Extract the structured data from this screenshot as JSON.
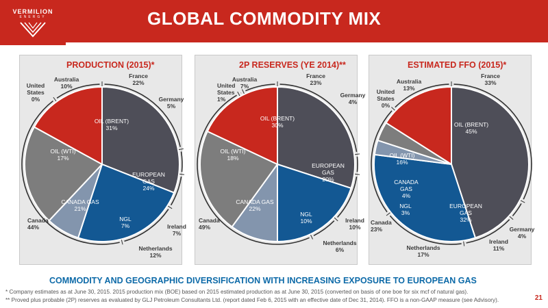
{
  "header": {
    "company_name": "VERMILION",
    "company_sub": "ENERGY",
    "title": "GLOBAL COMMODITY MIX",
    "brand_color": "#c8281e"
  },
  "colors": {
    "oil_brent": "#4e4e58",
    "oil_wti": "#c8281e",
    "canada_gas": "#7d7d7d",
    "ngl": "#8395ad",
    "european_gas": "#135893",
    "separator": "#ffffff",
    "outer_line": "#303030"
  },
  "chart_data": [
    {
      "type": "pie",
      "title": "PRODUCTION (2015)*",
      "slices": [
        {
          "label_lines": [
            "OIL (BRENT)",
            "31%"
          ],
          "value": 31,
          "color": "oil_brent"
        },
        {
          "label_lines": [
            "EUROPEAN",
            "GAS",
            "24%"
          ],
          "value": 24,
          "color": "european_gas"
        },
        {
          "label_lines": [
            "NGL",
            "7%"
          ],
          "value": 7,
          "color": "ngl"
        },
        {
          "label_lines": [
            "CANADA GAS",
            "21%"
          ],
          "value": 21,
          "color": "canada_gas"
        },
        {
          "label_lines": [
            "OIL (WTI)",
            "17%"
          ],
          "value": 17,
          "color": "oil_wti"
        }
      ],
      "outer_labels": [
        {
          "lines": [
            "France",
            "22%"
          ],
          "value": 22
        },
        {
          "lines": [
            "Germany",
            "5%"
          ],
          "value": 5
        },
        {
          "lines": [
            "Ireland",
            "7%"
          ],
          "value": 7
        },
        {
          "lines": [
            "Netherlands",
            "12%"
          ],
          "value": 12
        },
        {
          "lines": [
            "Canada",
            "44%"
          ],
          "value": 44
        },
        {
          "lines": [
            "United",
            "States",
            "0%"
          ],
          "value": 0
        },
        {
          "lines": [
            "Australia",
            "10%"
          ],
          "value": 10
        }
      ]
    },
    {
      "type": "pie",
      "title": "2P RESERVES (YE 2014)**",
      "slices": [
        {
          "label_lines": [
            "OIL (BRENT)",
            "30%"
          ],
          "value": 30,
          "color": "oil_brent"
        },
        {
          "label_lines": [
            "EUROPEAN",
            "GAS",
            "20%"
          ],
          "value": 20,
          "color": "european_gas"
        },
        {
          "label_lines": [
            "NGL",
            "10%"
          ],
          "value": 10,
          "color": "ngl"
        },
        {
          "label_lines": [
            "CANADA GAS",
            "22%"
          ],
          "value": 22,
          "color": "canada_gas"
        },
        {
          "label_lines": [
            "OIL (WTI)",
            "18%"
          ],
          "value": 18,
          "color": "oil_wti"
        }
      ],
      "outer_labels": [
        {
          "lines": [
            "France",
            "23%"
          ],
          "value": 23
        },
        {
          "lines": [
            "Germany",
            "4%"
          ],
          "value": 4
        },
        {
          "lines": [
            "Ireland",
            "10%"
          ],
          "value": 10
        },
        {
          "lines": [
            "Netherlands",
            "6%"
          ],
          "value": 6
        },
        {
          "lines": [
            "Canada",
            "49%"
          ],
          "value": 49
        },
        {
          "lines": [
            "United",
            "States",
            "1%"
          ],
          "value": 1
        },
        {
          "lines": [
            "Australia",
            "7%"
          ],
          "value": 7
        }
      ]
    },
    {
      "type": "pie",
      "title": "ESTIMATED FFO (2015)*",
      "slices": [
        {
          "label_lines": [
            "OIL (BRENT)",
            "45%"
          ],
          "value": 45,
          "color": "oil_brent"
        },
        {
          "label_lines": [
            "EUROPEAN",
            "GAS",
            "32%"
          ],
          "value": 32,
          "color": "european_gas"
        },
        {
          "label_lines": [
            "NGL",
            "3%"
          ],
          "value": 3,
          "color": "ngl"
        },
        {
          "label_lines": [
            "CANADA",
            "GAS",
            "4%"
          ],
          "value": 4,
          "color": "canada_gas"
        },
        {
          "label_lines": [
            "OIL (WTI)",
            "16%"
          ],
          "value": 16,
          "color": "oil_wti"
        }
      ],
      "outer_labels": [
        {
          "lines": [
            "France",
            "33%"
          ],
          "value": 33
        },
        {
          "lines": [
            "Germany",
            "4%"
          ],
          "value": 4
        },
        {
          "lines": [
            "Ireland",
            "11%"
          ],
          "value": 11
        },
        {
          "lines": [
            "Netherlands",
            "17%"
          ],
          "value": 17
        },
        {
          "lines": [
            "Canada",
            "23%"
          ],
          "value": 23
        },
        {
          "lines": [
            "United",
            "States",
            "0%"
          ],
          "value": 0
        },
        {
          "lines": [
            "Australia",
            "13%"
          ],
          "value": 13
        }
      ]
    }
  ],
  "tagline": "COMMODITY AND GEOGRAPHIC DIVERSIFICATION WITH INCREASING EXPOSURE TO EUROPEAN GAS",
  "footnotes": [
    "*   Company estimates as at June 30, 2015.  2015 production mix (BOE) based on 2015 estimated production as at June 30, 2015 (converted on basis of one boe for six mcf of natural gas).",
    "** Proved plus probable (2P) reserves as evaluated by GLJ Petroleum Consultants Ltd. (report dated Feb 6, 2015 with an effective date of Dec 31, 2014).  FFO is a non-GAAP measure (see Advisory)."
  ],
  "page_number": "21"
}
